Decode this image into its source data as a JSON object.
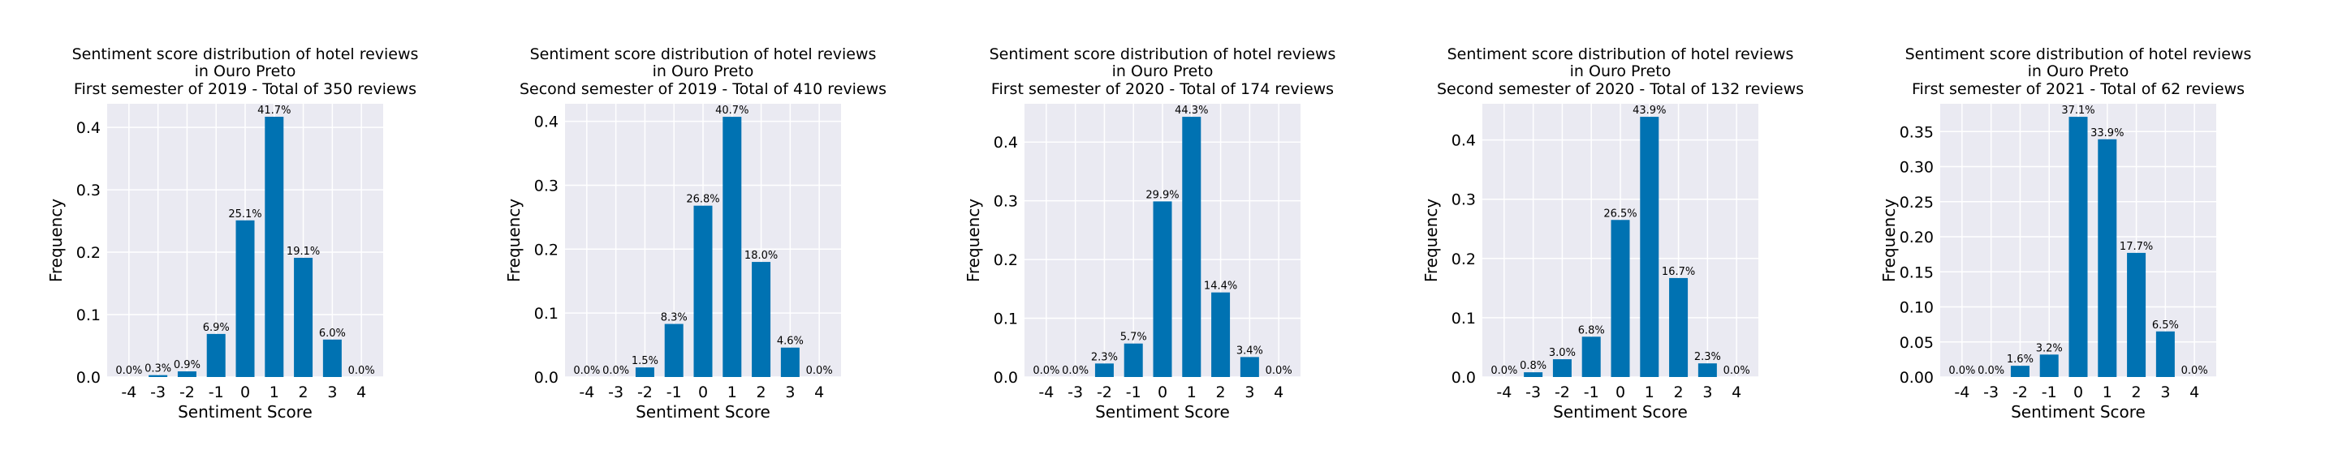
{
  "colors": {
    "bar": "#0072B2",
    "panel_bg": "#EAEAF2",
    "grid": "#FFFFFF"
  },
  "chart_data": [
    {
      "type": "bar",
      "title": [
        "Sentiment score distribution of hotel reviews",
        "in Ouro Preto",
        "First semester of 2019 - Total of 350 reviews"
      ],
      "xlabel": "Sentiment Score",
      "ylabel": "Frequency",
      "categories": [
        "-4",
        "-3",
        "-2",
        "-1",
        "0",
        "1",
        "2",
        "3",
        "4"
      ],
      "values": [
        0.0,
        0.003,
        0.009,
        0.069,
        0.251,
        0.417,
        0.191,
        0.06,
        0.0
      ],
      "data_labels": [
        "0.0%",
        "0.3%",
        "0.9%",
        "6.9%",
        "25.1%",
        "41.7%",
        "19.1%",
        "6.0%",
        "0.0%"
      ],
      "yticks": [
        0.0,
        0.1,
        0.2,
        0.3,
        0.4
      ],
      "ytick_labels": [
        "0.0",
        "0.1",
        "0.2",
        "0.3",
        "0.4"
      ],
      "ylim": [
        0,
        0.4378
      ],
      "grid": true
    },
    {
      "type": "bar",
      "title": [
        "Sentiment score distribution of hotel reviews",
        "in Ouro Preto",
        "Second semester of 2019 - Total of 410 reviews"
      ],
      "xlabel": "Sentiment Score",
      "ylabel": "Frequency",
      "categories": [
        "-4",
        "-3",
        "-2",
        "-1",
        "0",
        "1",
        "2",
        "3",
        "4"
      ],
      "values": [
        0.0,
        0.0,
        0.015,
        0.083,
        0.268,
        0.407,
        0.18,
        0.046,
        0.0
      ],
      "data_labels": [
        "0.0%",
        "0.0%",
        "1.5%",
        "8.3%",
        "26.8%",
        "40.7%",
        "18.0%",
        "4.6%",
        "0.0%"
      ],
      "yticks": [
        0.0,
        0.1,
        0.2,
        0.3,
        0.4
      ],
      "ytick_labels": [
        "0.0",
        "0.1",
        "0.2",
        "0.3",
        "0.4"
      ],
      "ylim": [
        0,
        0.4274
      ],
      "grid": true
    },
    {
      "type": "bar",
      "title": [
        "Sentiment score distribution of hotel reviews",
        "in Ouro Preto",
        "First semester of 2020 - Total of 174 reviews"
      ],
      "xlabel": "Sentiment Score",
      "ylabel": "Frequency",
      "categories": [
        "-4",
        "-3",
        "-2",
        "-1",
        "0",
        "1",
        "2",
        "3",
        "4"
      ],
      "values": [
        0.0,
        0.0,
        0.023,
        0.057,
        0.299,
        0.443,
        0.144,
        0.034,
        0.0
      ],
      "data_labels": [
        "0.0%",
        "0.0%",
        "2.3%",
        "5.7%",
        "29.9%",
        "44.3%",
        "14.4%",
        "3.4%",
        "0.0%"
      ],
      "yticks": [
        0.0,
        0.1,
        0.2,
        0.3,
        0.4
      ],
      "ytick_labels": [
        "0.0",
        "0.1",
        "0.2",
        "0.3",
        "0.4"
      ],
      "ylim": [
        0,
        0.4652
      ],
      "grid": true
    },
    {
      "type": "bar",
      "title": [
        "Sentiment score distribution of hotel reviews",
        "in Ouro Preto",
        "Second semester of 2020 - Total of 132 reviews"
      ],
      "xlabel": "Sentiment Score",
      "ylabel": "Frequency",
      "categories": [
        "-4",
        "-3",
        "-2",
        "-1",
        "0",
        "1",
        "2",
        "3",
        "4"
      ],
      "values": [
        0.0,
        0.008,
        0.03,
        0.068,
        0.265,
        0.439,
        0.167,
        0.023,
        0.0
      ],
      "data_labels": [
        "0.0%",
        "0.8%",
        "3.0%",
        "6.8%",
        "26.5%",
        "43.9%",
        "16.7%",
        "2.3%",
        "0.0%"
      ],
      "yticks": [
        0.0,
        0.1,
        0.2,
        0.3,
        0.4
      ],
      "ytick_labels": [
        "0.0",
        "0.1",
        "0.2",
        "0.3",
        "0.4"
      ],
      "ylim": [
        0,
        0.461
      ],
      "grid": true
    },
    {
      "type": "bar",
      "title": [
        "Sentiment score distribution of hotel reviews",
        "in Ouro Preto",
        "First semester of 2021 - Total of 62 reviews"
      ],
      "xlabel": "Sentiment Score",
      "ylabel": "Frequency",
      "categories": [
        "-4",
        "-3",
        "-2",
        "-1",
        "0",
        "1",
        "2",
        "3",
        "4"
      ],
      "values": [
        0.0,
        0.0,
        0.016,
        0.032,
        0.371,
        0.339,
        0.177,
        0.065,
        0.0
      ],
      "data_labels": [
        "0.0%",
        "0.0%",
        "1.6%",
        "3.2%",
        "37.1%",
        "33.9%",
        "17.7%",
        "6.5%",
        "0.0%"
      ],
      "yticks": [
        0.0,
        0.05,
        0.1,
        0.15,
        0.2,
        0.25,
        0.3,
        0.35
      ],
      "ytick_labels": [
        "0.00",
        "0.05",
        "0.10",
        "0.15",
        "0.20",
        "0.25",
        "0.30",
        "0.35"
      ],
      "ylim": [
        0,
        0.3896
      ],
      "grid": true
    }
  ]
}
